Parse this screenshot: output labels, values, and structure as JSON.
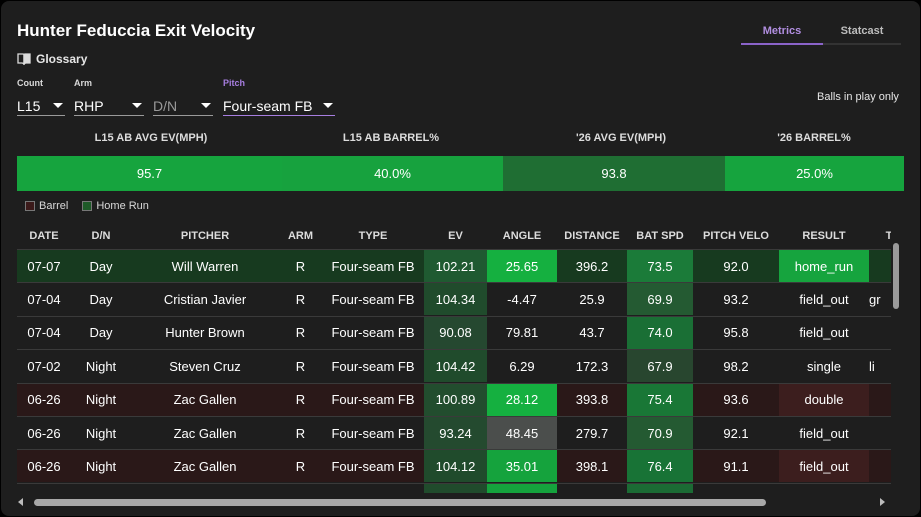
{
  "title": "Hunter Feduccia Exit Velocity",
  "glossary_label": "Glossary",
  "tabs": [
    {
      "label": "Metrics",
      "active": true
    },
    {
      "label": "Statcast",
      "active": false
    }
  ],
  "filters": {
    "count": {
      "label": "Count",
      "value": "L15"
    },
    "arm": {
      "label": "Arm",
      "value": "RHP"
    },
    "dn": {
      "label": "",
      "value": "D/N"
    },
    "pitch": {
      "label": "Pitch",
      "value": "Four-seam FB"
    }
  },
  "balls_in_play_label": "Balls in play only",
  "summary": {
    "headers": [
      "L15 AB AVG EV(MPH)",
      "L15 AB BARREL%",
      "'26 AVG EV(MPH)",
      "'26 BARREL%"
    ],
    "values": [
      "95.7",
      "40.0%",
      "93.8",
      "25.0%"
    ],
    "colors": [
      "#16a43e",
      "#17a23e",
      "#1f6e33",
      "#16a43e"
    ]
  },
  "legend": [
    {
      "label": "Barrel",
      "color": "#3b1a1a"
    },
    {
      "label": "Home Run",
      "color": "#1e5a28"
    }
  ],
  "table": {
    "columns": [
      "DATE",
      "D/N",
      "PITCHER",
      "ARM",
      "TYPE",
      "EV",
      "ANGLE",
      "DISTANCE",
      "BAT SPD",
      "PITCH VELO",
      "RESULT",
      "TR"
    ],
    "rows": [
      {
        "cells": [
          "07-07",
          "Day",
          "Will Warren",
          "R",
          "Four-seam FB",
          "102.21",
          "25.65",
          "396.2",
          "73.5",
          "92.0",
          "home_run",
          ""
        ],
        "row_bg": "#173a1f",
        "ev_bg": "#1f5a31",
        "angle_bg": "#15b040",
        "dist_bg": "",
        "bat_bg": "#1b7b39",
        "result_bg": "#16a43e"
      },
      {
        "cells": [
          "07-04",
          "Day",
          "Cristian Javier",
          "R",
          "Four-seam FB",
          "104.34",
          "-4.47",
          "25.9",
          "69.9",
          "93.2",
          "field_out",
          "gr"
        ],
        "row_bg": "#1e1e1e",
        "ev_bg": "#204b2c",
        "angle_bg": "",
        "dist_bg": "",
        "bat_bg": "#245a32",
        "result_bg": ""
      },
      {
        "cells": [
          "07-04",
          "Day",
          "Hunter Brown",
          "R",
          "Four-seam FB",
          "90.08",
          "79.81",
          "43.7",
          "74.0",
          "95.8",
          "field_out",
          ""
        ],
        "row_bg": "#1e1e1e",
        "ev_bg": "#254830",
        "angle_bg": "",
        "dist_bg": "",
        "bat_bg": "#1a6f35",
        "result_bg": ""
      },
      {
        "cells": [
          "07-02",
          "Night",
          "Steven Cruz",
          "R",
          "Four-seam FB",
          "104.42",
          "6.29",
          "172.3",
          "67.9",
          "98.2",
          "single",
          "li"
        ],
        "row_bg": "#1e1e1e",
        "ev_bg": "#204b2c",
        "angle_bg": "",
        "dist_bg": "",
        "bat_bg": "#28462f",
        "result_bg": ""
      },
      {
        "cells": [
          "06-26",
          "Night",
          "Zac Gallen",
          "R",
          "Four-seam FB",
          "100.89",
          "28.12",
          "393.8",
          "75.4",
          "93.6",
          "double",
          ""
        ],
        "row_bg": "#2a1818",
        "ev_bg": "#224d2e",
        "angle_bg": "#15b040",
        "dist_bg": "",
        "bat_bg": "#197736",
        "result_bg": "#3c1e1e"
      },
      {
        "cells": [
          "06-26",
          "Night",
          "Zac Gallen",
          "R",
          "Four-seam FB",
          "93.24",
          "48.45",
          "279.7",
          "70.9",
          "92.1",
          "field_out",
          ""
        ],
        "row_bg": "#1e1e1e",
        "ev_bg": "#244a2f",
        "angle_bg": "#4b4e4c",
        "dist_bg": "",
        "bat_bg": "#245a32",
        "result_bg": ""
      },
      {
        "cells": [
          "06-26",
          "Night",
          "Zac Gallen",
          "R",
          "Four-seam FB",
          "104.12",
          "35.01",
          "398.1",
          "76.4",
          "91.1",
          "field_out",
          ""
        ],
        "row_bg": "#2a1818",
        "ev_bg": "#204b2c",
        "angle_bg": "#15a33d",
        "dist_bg": "",
        "bat_bg": "#187336",
        "result_bg": "#3c1e1e"
      },
      {
        "cells": [
          "",
          "",
          "",
          "",
          "",
          "",
          "",
          "",
          "",
          "",
          "",
          ""
        ],
        "row_bg": "#1e1e1e",
        "ev_bg": "#204b2c",
        "angle_bg": "#15a33d",
        "dist_bg": "",
        "bat_bg": "#1b6b34",
        "result_bg": ""
      }
    ]
  },
  "icons": {
    "glossary": "book-icon",
    "dropdown": "caret-down-icon"
  }
}
